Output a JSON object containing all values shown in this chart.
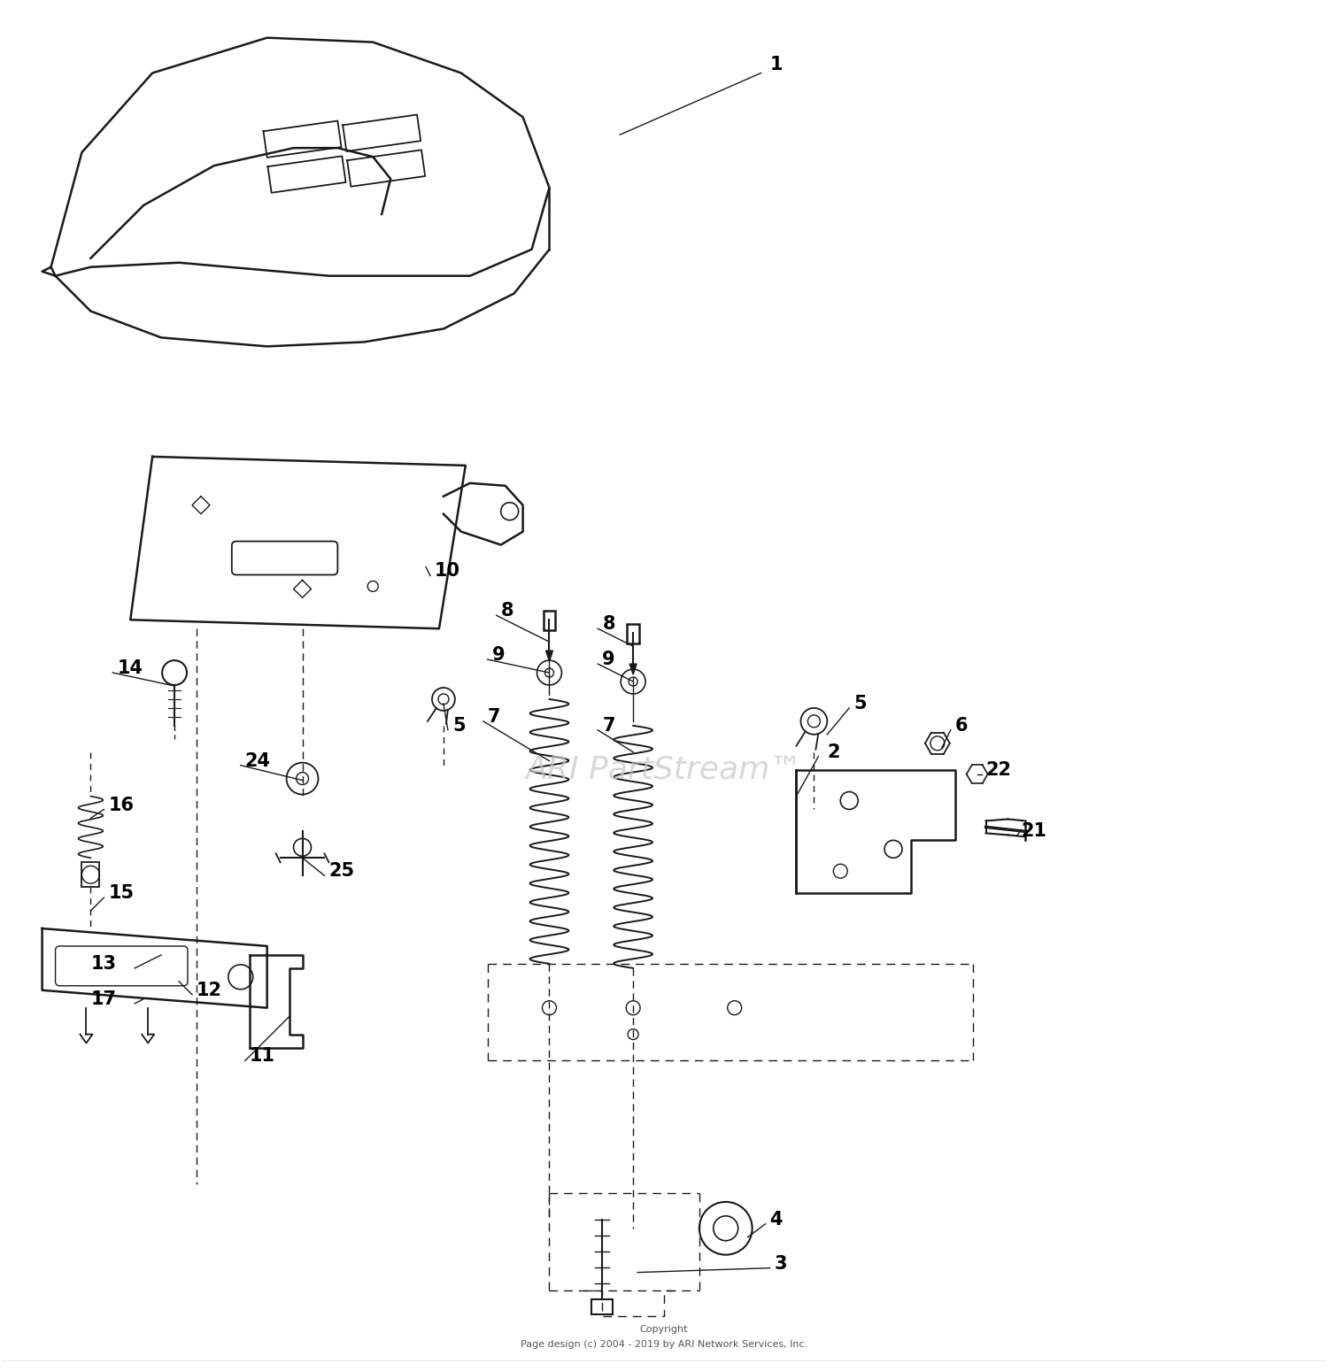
{
  "copyright_line1": "Copyright",
  "copyright_line2": "Page design (c) 2004 - 2019 by ARI Network Services, Inc.",
  "watermark": "ARI PartStream™",
  "background_color": "#ffffff",
  "line_color": "#1a1a1a",
  "watermark_color": "#c8c8c8",
  "fig_width": 15.0,
  "fig_height": 15.49
}
